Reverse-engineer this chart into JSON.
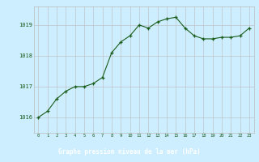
{
  "x": [
    0,
    1,
    2,
    3,
    4,
    5,
    6,
    7,
    8,
    9,
    10,
    11,
    12,
    13,
    14,
    15,
    16,
    17,
    18,
    19,
    20,
    21,
    22,
    23
  ],
  "y": [
    1016.0,
    1016.2,
    1016.6,
    1016.85,
    1017.0,
    1017.0,
    1017.1,
    1017.3,
    1018.1,
    1018.45,
    1018.65,
    1019.0,
    1018.9,
    1019.1,
    1019.2,
    1019.25,
    1018.9,
    1018.65,
    1018.55,
    1018.55,
    1018.6,
    1018.6,
    1018.65,
    1018.9
  ],
  "bg_color": "#cceeff",
  "grid_color": "#bbbbbb",
  "line_color": "#1a5c1a",
  "marker_color": "#1a5c1a",
  "xlabel": "Graphe pression niveau de la mer (hPa)",
  "tick_color": "#1a5c1a",
  "ylim": [
    1015.5,
    1019.6
  ],
  "yticks": [
    1016,
    1017,
    1018,
    1019
  ],
  "xticks": [
    0,
    1,
    2,
    3,
    4,
    5,
    6,
    7,
    8,
    9,
    10,
    11,
    12,
    13,
    14,
    15,
    16,
    17,
    18,
    19,
    20,
    21,
    22,
    23
  ],
  "footer_bg": "#2d6b2d",
  "footer_text_color": "#ffffff"
}
